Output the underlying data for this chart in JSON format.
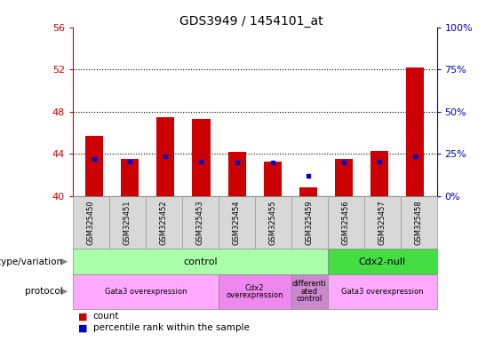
{
  "title": "GDS3949 / 1454101_at",
  "samples": [
    "GSM325450",
    "GSM325451",
    "GSM325452",
    "GSM325453",
    "GSM325454",
    "GSM325455",
    "GSM325459",
    "GSM325456",
    "GSM325457",
    "GSM325458"
  ],
  "counts": [
    45.7,
    43.5,
    47.5,
    47.3,
    44.2,
    43.3,
    40.8,
    43.5,
    44.3,
    52.2
  ],
  "blue_marker_values": [
    43.5,
    43.3,
    43.8,
    43.3,
    43.2,
    43.2,
    41.9,
    43.2,
    43.3,
    43.8
  ],
  "ylim_left": [
    40,
    56
  ],
  "ylim_right": [
    0,
    100
  ],
  "yticks_left": [
    40,
    44,
    48,
    52,
    56
  ],
  "yticks_right": [
    0,
    25,
    50,
    75,
    100
  ],
  "bar_color": "#cc0000",
  "marker_color": "#0000cc",
  "bar_bottom": 40,
  "dotted_levels": [
    44,
    48,
    52
  ],
  "genotype_groups": [
    {
      "label": "control",
      "start": 0,
      "end": 7,
      "color": "#aaffaa"
    },
    {
      "label": "Cdx2-null",
      "start": 7,
      "end": 10,
      "color": "#44dd44"
    }
  ],
  "protocol_groups": [
    {
      "label": "Gata3 overexpression",
      "start": 0,
      "end": 4,
      "color": "#ffaaff"
    },
    {
      "label": "Cdx2\noverexpression",
      "start": 4,
      "end": 6,
      "color": "#ee88ee"
    },
    {
      "label": "differenti\nated\ncontrol",
      "start": 6,
      "end": 7,
      "color": "#cc88cc"
    },
    {
      "label": "Gata3 overexpression",
      "start": 7,
      "end": 10,
      "color": "#ffaaff"
    }
  ],
  "left_tick_color": "#cc0000",
  "right_tick_color": "#0000cc",
  "background_xtick": "#d8d8d8",
  "bar_width": 0.5,
  "xlim": [
    -0.6,
    9.6
  ]
}
